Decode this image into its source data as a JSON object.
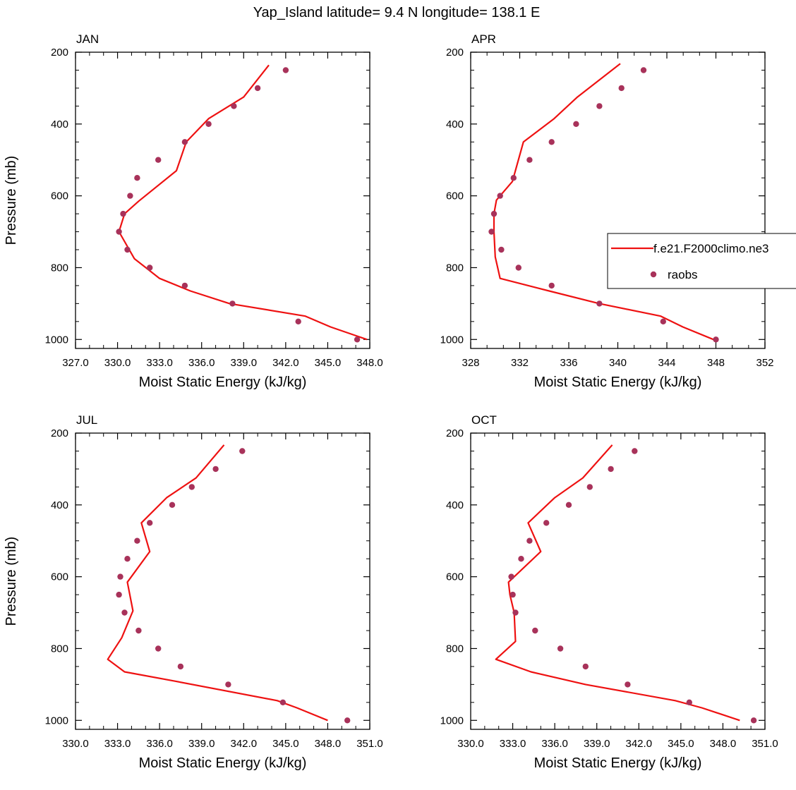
{
  "title": "Yap_Island  latitude= 9.4 N longitude= 138.1 E",
  "colors": {
    "model": "#ee1111",
    "obs": "#a8325a",
    "axis": "#000000"
  },
  "legend": {
    "entries": [
      {
        "label": "f.e21.F2000climo.ne3",
        "kind": "line"
      },
      {
        "label": "raobs",
        "kind": "marker"
      }
    ],
    "placement": "right of APR panel"
  },
  "chart_data": [
    {
      "type": "line",
      "title": "JAN",
      "xlabel": "Moist Static Energy (kJ/kg)",
      "ylabel": "Pressure (mb)",
      "xlim": [
        327,
        348
      ],
      "xticks": [
        327,
        330,
        333,
        336,
        339,
        342,
        345,
        348
      ],
      "xtick_labels": [
        "327.0",
        "330.0",
        "333.0",
        "336.0",
        "339.0",
        "342.0",
        "345.0",
        "348.0"
      ],
      "ylim": [
        1025,
        200
      ],
      "yticks": [
        200,
        400,
        600,
        800,
        1000
      ],
      "ytick_labels": [
        "200",
        "400",
        "600",
        "800",
        "1000"
      ],
      "series": [
        {
          "name": "f.e21.F2000climo.ne3",
          "style": "line",
          "x": [
            347.8,
            345.2,
            343.4,
            338.0,
            335.2,
            333.0,
            331.2,
            330.1,
            330.5,
            331.5,
            334.2,
            334.9,
            336.5,
            339.0,
            340.8
          ],
          "y": [
            1000,
            965,
            935,
            900,
            865,
            830,
            775,
            700,
            650,
            615,
            530,
            450,
            385,
            325,
            236
          ]
        },
        {
          "name": "raobs",
          "style": "markers",
          "x": [
            347.1,
            342.9,
            338.2,
            334.8,
            332.3,
            330.7,
            330.1,
            330.4,
            330.9,
            331.4,
            332.9,
            334.8,
            336.5,
            338.3,
            340.0,
            342.0
          ],
          "y": [
            1000,
            950,
            900,
            850,
            800,
            750,
            700,
            650,
            600,
            550,
            500,
            450,
            400,
            350,
            300,
            250
          ]
        }
      ]
    },
    {
      "type": "line",
      "title": "APR",
      "xlabel": "Moist Static Energy (kJ/kg)",
      "ylabel": "",
      "xlim": [
        328,
        352
      ],
      "xticks": [
        328,
        332,
        336,
        340,
        344,
        348,
        352
      ],
      "xtick_labels": [
        "328",
        "332",
        "336",
        "340",
        "344",
        "348",
        "352"
      ],
      "ylim": [
        1025,
        200
      ],
      "yticks": [
        200,
        400,
        600,
        800,
        1000
      ],
      "ytick_labels": [
        "200",
        "400",
        "600",
        "800",
        "1000"
      ],
      "series": [
        {
          "name": "f.e21.F2000climo.ne3",
          "style": "line",
          "x": [
            347.8,
            345.3,
            343.5,
            338.5,
            334.4,
            330.4,
            330.0,
            329.9,
            329.9,
            330.1,
            331.4,
            332.3,
            334.8,
            336.7,
            340.2
          ],
          "y": [
            1000,
            965,
            935,
            900,
            865,
            830,
            770,
            700,
            650,
            612,
            560,
            450,
            385,
            325,
            232
          ]
        },
        {
          "name": "raobs",
          "style": "markers",
          "x": [
            348.0,
            343.7,
            338.5,
            334.6,
            331.9,
            330.5,
            329.7,
            329.9,
            330.4,
            331.5,
            332.8,
            334.6,
            336.6,
            338.5,
            340.3,
            342.1
          ],
          "y": [
            1000,
            950,
            900,
            850,
            800,
            750,
            700,
            650,
            600,
            550,
            500,
            450,
            400,
            350,
            300,
            250
          ]
        }
      ]
    },
    {
      "type": "line",
      "title": "JUL",
      "xlabel": "Moist Static Energy (kJ/kg)",
      "ylabel": "Pressure (mb)",
      "xlim": [
        330,
        351
      ],
      "xticks": [
        330,
        333,
        336,
        339,
        342,
        345,
        348,
        351
      ],
      "xtick_labels": [
        "330.0",
        "333.0",
        "336.0",
        "339.0",
        "342.0",
        "345.0",
        "348.0",
        "351.0"
      ],
      "ylim": [
        1025,
        200
      ],
      "yticks": [
        200,
        400,
        600,
        800,
        1000
      ],
      "ytick_labels": [
        "200",
        "400",
        "600",
        "800",
        "1000"
      ],
      "series": [
        {
          "name": "f.e21.F2000climo.ne3",
          "style": "line",
          "x": [
            348.0,
            345.8,
            344.4,
            337.0,
            333.5,
            332.3,
            333.3,
            334.1,
            333.7,
            335.3,
            334.7,
            336.5,
            338.6,
            340.6
          ],
          "y": [
            1000,
            965,
            945,
            890,
            865,
            830,
            770,
            695,
            615,
            530,
            450,
            380,
            325,
            233
          ]
        },
        {
          "name": "raobs",
          "style": "markers",
          "x": [
            349.4,
            344.8,
            340.9,
            337.5,
            335.9,
            334.5,
            333.5,
            333.1,
            333.2,
            333.7,
            334.4,
            335.3,
            336.9,
            338.3,
            340.0,
            341.9
          ],
          "y": [
            1000,
            950,
            900,
            850,
            800,
            750,
            700,
            650,
            600,
            550,
            500,
            450,
            400,
            350,
            300,
            250
          ]
        }
      ]
    },
    {
      "type": "line",
      "title": "OCT",
      "xlabel": "Moist Static Energy (kJ/kg)",
      "ylabel": "",
      "xlim": [
        330,
        351
      ],
      "xticks": [
        330,
        333,
        336,
        339,
        342,
        345,
        348,
        351
      ],
      "xtick_labels": [
        "330.0",
        "333.0",
        "336.0",
        "339.0",
        "342.0",
        "345.0",
        "348.0",
        "351.0"
      ],
      "ylim": [
        1025,
        200
      ],
      "yticks": [
        200,
        400,
        600,
        800,
        1000
      ],
      "ytick_labels": [
        "200",
        "400",
        "600",
        "800",
        "1000"
      ],
      "series": [
        {
          "name": "f.e21.F2000climo.ne3",
          "style": "line",
          "x": [
            349.2,
            346.5,
            344.6,
            338.2,
            334.3,
            331.8,
            333.2,
            333.1,
            332.8,
            332.7,
            335.0,
            334.1,
            336.0,
            338.0,
            340.1
          ],
          "y": [
            1000,
            965,
            945,
            900,
            865,
            830,
            780,
            700,
            650,
            615,
            530,
            450,
            380,
            325,
            233
          ]
        },
        {
          "name": "raobs",
          "style": "markers",
          "x": [
            350.2,
            345.6,
            341.2,
            338.2,
            336.4,
            334.6,
            333.2,
            333.0,
            332.9,
            333.6,
            334.2,
            335.4,
            337.0,
            338.5,
            340.0,
            341.7
          ],
          "y": [
            1000,
            950,
            900,
            850,
            800,
            750,
            700,
            650,
            600,
            550,
            500,
            450,
            400,
            350,
            300,
            250
          ]
        }
      ]
    }
  ]
}
